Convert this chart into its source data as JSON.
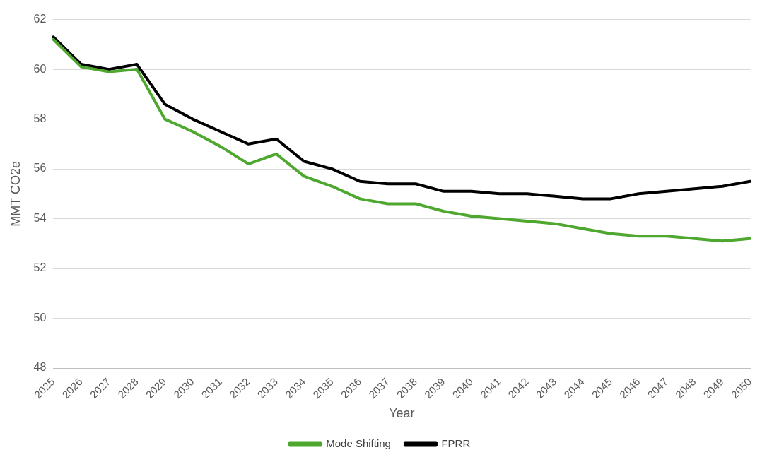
{
  "chart_data": {
    "type": "line",
    "xlabel": "Year",
    "ylabel": "MMT CO2e",
    "categories": [
      "2025",
      "2026",
      "2027",
      "2028",
      "2029",
      "2030",
      "2031",
      "2032",
      "2033",
      "2034",
      "2035",
      "2036",
      "2037",
      "2038",
      "2039",
      "2040",
      "2041",
      "2042",
      "2043",
      "2044",
      "2045",
      "2046",
      "2047",
      "2048",
      "2049",
      "2050"
    ],
    "series": [
      {
        "name": "Mode Shifting",
        "color": "#4ea72e",
        "values": [
          61.2,
          60.1,
          59.9,
          60.0,
          58.0,
          57.5,
          56.9,
          56.2,
          56.6,
          55.7,
          55.3,
          54.8,
          54.6,
          54.6,
          54.3,
          54.1,
          54.0,
          53.9,
          53.8,
          53.6,
          53.4,
          53.3,
          53.3,
          53.2,
          53.1,
          53.2
        ]
      },
      {
        "name": "FPRR",
        "color": "#000000",
        "values": [
          61.3,
          60.2,
          60.0,
          60.2,
          58.6,
          58.0,
          57.5,
          57.0,
          57.2,
          56.3,
          56.0,
          55.5,
          55.4,
          55.4,
          55.1,
          55.1,
          55.0,
          55.0,
          54.9,
          54.8,
          54.8,
          55.0,
          55.1,
          55.2,
          55.3,
          55.5
        ]
      }
    ],
    "ylim": [
      48,
      62
    ],
    "yticks": [
      48,
      50,
      52,
      54,
      56,
      58,
      60,
      62
    ],
    "grid": "y",
    "legend": "bottom",
    "marker": "none",
    "line_style": "solid"
  }
}
